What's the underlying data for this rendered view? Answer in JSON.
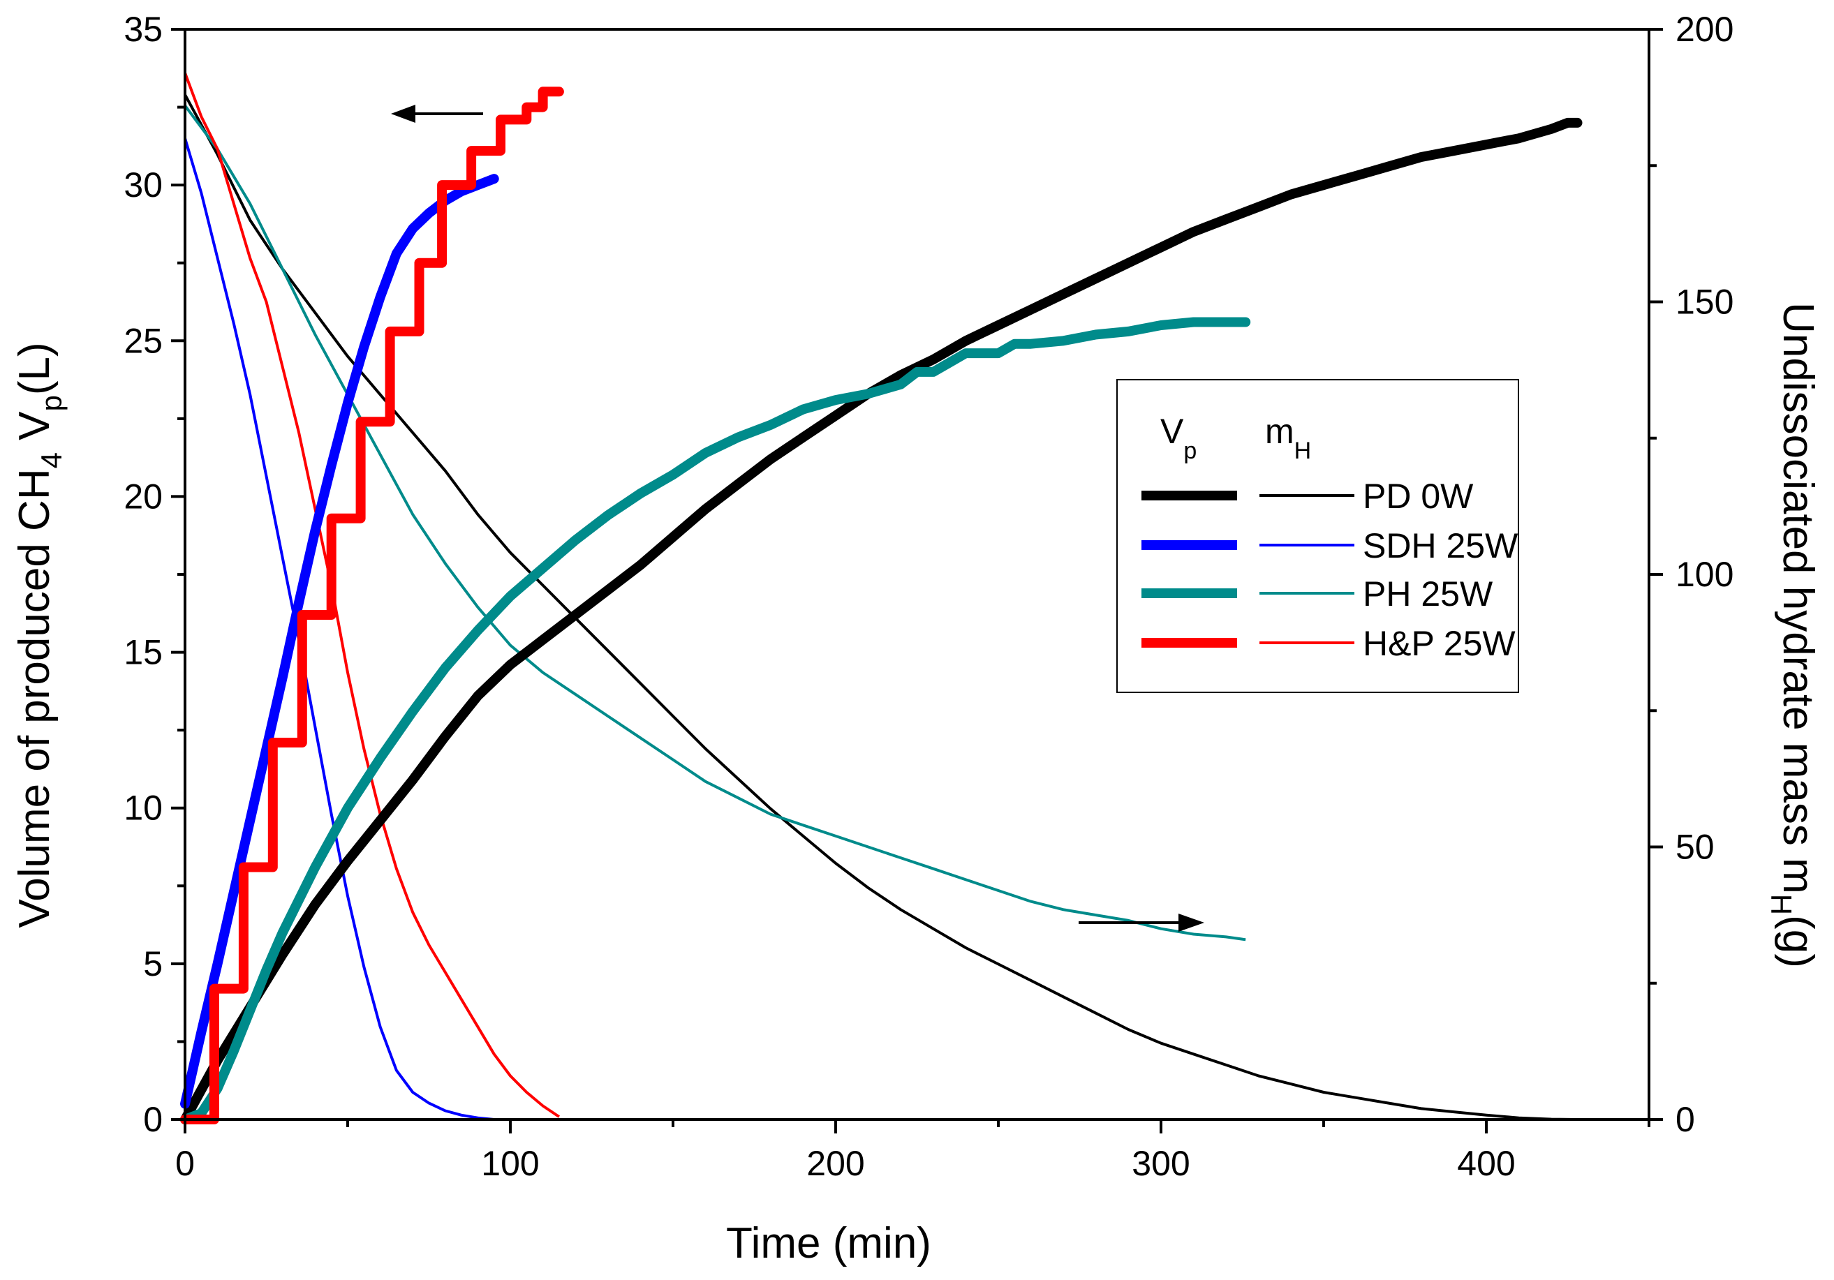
{
  "chart_data": {
    "type": "line",
    "x": {
      "label": "Time (min)",
      "range": [
        0,
        450
      ],
      "ticks": [
        0,
        100,
        200,
        300,
        400
      ]
    },
    "y_left": {
      "label_main": "Volume of produced CH",
      "label_sub1": "4",
      "label_mid": " V",
      "label_sub2": "p",
      "label_tail": "(L)",
      "range": [
        0,
        35
      ],
      "ticks": [
        0,
        5,
        10,
        15,
        20,
        25,
        30,
        35
      ]
    },
    "y_right": {
      "label_main": "Undissociated hydrate mass m",
      "label_sub": "H",
      "label_tail": "(g)",
      "range": [
        0,
        200
      ],
      "ticks": [
        0,
        50,
        100,
        150,
        200
      ]
    },
    "legend": {
      "header_vp": "V",
      "header_vp_sub": "p",
      "header_mh": "m",
      "header_mh_sub": "H",
      "position": "center-right"
    },
    "series": [
      {
        "name": "PD 0W",
        "color": "#000000",
        "volume": [
          [
            0,
            0
          ],
          [
            10,
            1.9
          ],
          [
            20,
            3.6
          ],
          [
            30,
            5.3
          ],
          [
            40,
            6.9
          ],
          [
            50,
            8.3
          ],
          [
            60,
            9.6
          ],
          [
            70,
            10.9
          ],
          [
            80,
            12.3
          ],
          [
            90,
            13.6
          ],
          [
            100,
            14.6
          ],
          [
            110,
            15.4
          ],
          [
            120,
            16.2
          ],
          [
            130,
            17.0
          ],
          [
            140,
            17.8
          ],
          [
            150,
            18.7
          ],
          [
            160,
            19.6
          ],
          [
            170,
            20.4
          ],
          [
            180,
            21.2
          ],
          [
            190,
            21.9
          ],
          [
            200,
            22.6
          ],
          [
            210,
            23.3
          ],
          [
            220,
            23.9
          ],
          [
            230,
            24.4
          ],
          [
            240,
            25.0
          ],
          [
            250,
            25.5
          ],
          [
            260,
            26.0
          ],
          [
            270,
            26.5
          ],
          [
            280,
            27.0
          ],
          [
            290,
            27.5
          ],
          [
            300,
            28.0
          ],
          [
            310,
            28.5
          ],
          [
            320,
            28.9
          ],
          [
            330,
            29.3
          ],
          [
            340,
            29.7
          ],
          [
            350,
            30.0
          ],
          [
            360,
            30.3
          ],
          [
            370,
            30.6
          ],
          [
            380,
            30.9
          ],
          [
            390,
            31.1
          ],
          [
            400,
            31.3
          ],
          [
            410,
            31.5
          ],
          [
            420,
            31.8
          ],
          [
            425,
            32.0
          ],
          [
            428,
            32.0
          ]
        ],
        "mass": [
          [
            0,
            188
          ],
          [
            10,
            177
          ],
          [
            20,
            165
          ],
          [
            30,
            156
          ],
          [
            40,
            148
          ],
          [
            50,
            140
          ],
          [
            60,
            133
          ],
          [
            70,
            126
          ],
          [
            80,
            119
          ],
          [
            90,
            111
          ],
          [
            100,
            104
          ],
          [
            110,
            98
          ],
          [
            120,
            92
          ],
          [
            130,
            86
          ],
          [
            140,
            80
          ],
          [
            150,
            74
          ],
          [
            160,
            68
          ],
          [
            170,
            62.5
          ],
          [
            180,
            57
          ],
          [
            190,
            52
          ],
          [
            200,
            47
          ],
          [
            210,
            42.5
          ],
          [
            220,
            38.5
          ],
          [
            230,
            35
          ],
          [
            240,
            31.5
          ],
          [
            250,
            28.5
          ],
          [
            260,
            25.5
          ],
          [
            270,
            22.5
          ],
          [
            280,
            19.5
          ],
          [
            290,
            16.5
          ],
          [
            300,
            14
          ],
          [
            310,
            12
          ],
          [
            320,
            10
          ],
          [
            330,
            8
          ],
          [
            340,
            6.5
          ],
          [
            350,
            5
          ],
          [
            360,
            4
          ],
          [
            370,
            3
          ],
          [
            380,
            2
          ],
          [
            390,
            1.4
          ],
          [
            400,
            0.8
          ],
          [
            410,
            0.3
          ],
          [
            420,
            0.05
          ],
          [
            428,
            0
          ]
        ]
      },
      {
        "name": "SDH 25W",
        "color": "#0000ff",
        "volume": [
          [
            0,
            0.5
          ],
          [
            5,
            2.8
          ],
          [
            10,
            5.0
          ],
          [
            15,
            7.3
          ],
          [
            20,
            9.6
          ],
          [
            25,
            11.9
          ],
          [
            30,
            14.2
          ],
          [
            35,
            16.6
          ],
          [
            40,
            18.9
          ],
          [
            45,
            21.0
          ],
          [
            50,
            23.0
          ],
          [
            55,
            24.8
          ],
          [
            60,
            26.4
          ],
          [
            65,
            27.8
          ],
          [
            70,
            28.6
          ],
          [
            75,
            29.1
          ],
          [
            80,
            29.5
          ],
          [
            85,
            29.8
          ],
          [
            90,
            30.0
          ],
          [
            95,
            30.2
          ]
        ],
        "mass": [
          [
            0,
            180
          ],
          [
            5,
            170
          ],
          [
            10,
            158
          ],
          [
            15,
            146
          ],
          [
            20,
            133
          ],
          [
            25,
            118
          ],
          [
            30,
            103
          ],
          [
            35,
            88
          ],
          [
            40,
            72
          ],
          [
            45,
            56
          ],
          [
            50,
            41
          ],
          [
            55,
            28
          ],
          [
            60,
            17
          ],
          [
            65,
            9
          ],
          [
            70,
            5
          ],
          [
            75,
            3
          ],
          [
            80,
            1.6
          ],
          [
            85,
            0.8
          ],
          [
            90,
            0.3
          ],
          [
            95,
            0
          ]
        ]
      },
      {
        "name": "PH 25W",
        "color": "#008b8b",
        "volume": [
          [
            0,
            0
          ],
          [
            5,
            0.2
          ],
          [
            10,
            1.0
          ],
          [
            15,
            2.2
          ],
          [
            20,
            3.5
          ],
          [
            25,
            4.8
          ],
          [
            30,
            6.0
          ],
          [
            40,
            8.1
          ],
          [
            50,
            10.0
          ],
          [
            60,
            11.6
          ],
          [
            70,
            13.1
          ],
          [
            80,
            14.5
          ],
          [
            90,
            15.7
          ],
          [
            100,
            16.8
          ],
          [
            110,
            17.7
          ],
          [
            120,
            18.6
          ],
          [
            130,
            19.4
          ],
          [
            140,
            20.1
          ],
          [
            150,
            20.7
          ],
          [
            160,
            21.4
          ],
          [
            170,
            21.9
          ],
          [
            180,
            22.3
          ],
          [
            190,
            22.8
          ],
          [
            200,
            23.1
          ],
          [
            210,
            23.3
          ],
          [
            220,
            23.6
          ],
          [
            225,
            24.0
          ],
          [
            230,
            24.0
          ],
          [
            235,
            24.3
          ],
          [
            240,
            24.6
          ],
          [
            250,
            24.6
          ],
          [
            255,
            24.9
          ],
          [
            260,
            24.9
          ],
          [
            270,
            25.0
          ],
          [
            280,
            25.2
          ],
          [
            290,
            25.3
          ],
          [
            300,
            25.5
          ],
          [
            310,
            25.6
          ],
          [
            320,
            25.6
          ],
          [
            326,
            25.6
          ]
        ],
        "mass": [
          [
            0,
            186
          ],
          [
            10,
            178
          ],
          [
            20,
            168
          ],
          [
            30,
            156
          ],
          [
            40,
            144
          ],
          [
            50,
            133
          ],
          [
            60,
            122
          ],
          [
            70,
            111
          ],
          [
            80,
            102
          ],
          [
            90,
            94
          ],
          [
            100,
            87
          ],
          [
            110,
            82
          ],
          [
            120,
            78
          ],
          [
            130,
            74
          ],
          [
            140,
            70
          ],
          [
            150,
            66
          ],
          [
            160,
            62
          ],
          [
            170,
            59
          ],
          [
            180,
            56
          ],
          [
            190,
            54
          ],
          [
            200,
            52
          ],
          [
            210,
            50
          ],
          [
            220,
            48
          ],
          [
            230,
            46
          ],
          [
            240,
            44
          ],
          [
            250,
            42
          ],
          [
            260,
            40
          ],
          [
            270,
            38.5
          ],
          [
            280,
            37.5
          ],
          [
            290,
            36.5
          ],
          [
            300,
            35
          ],
          [
            310,
            34
          ],
          [
            320,
            33.5
          ],
          [
            326,
            33
          ]
        ]
      },
      {
        "name": "H&P 25W",
        "color": "#ff0000",
        "volume": [
          [
            0,
            0
          ],
          [
            9,
            0
          ],
          [
            9,
            4.2
          ],
          [
            18,
            4.2
          ],
          [
            18,
            8.1
          ],
          [
            27,
            8.1
          ],
          [
            27,
            12.1
          ],
          [
            36,
            12.1
          ],
          [
            36,
            16.2
          ],
          [
            45,
            16.2
          ],
          [
            45,
            19.3
          ],
          [
            54,
            19.3
          ],
          [
            54,
            22.4
          ],
          [
            63,
            22.4
          ],
          [
            63,
            25.3
          ],
          [
            72,
            25.3
          ],
          [
            72,
            27.5
          ],
          [
            79,
            27.5
          ],
          [
            79,
            30.0
          ],
          [
            88,
            30.0
          ],
          [
            88,
            31.1
          ],
          [
            97,
            31.1
          ],
          [
            97,
            32.1
          ],
          [
            105,
            32.1
          ],
          [
            105,
            32.5
          ],
          [
            110,
            32.5
          ],
          [
            110,
            33.0
          ],
          [
            115,
            33.0
          ]
        ],
        "mass": [
          [
            0,
            192
          ],
          [
            5,
            184
          ],
          [
            10,
            178
          ],
          [
            15,
            168
          ],
          [
            20,
            158
          ],
          [
            25,
            150
          ],
          [
            30,
            138
          ],
          [
            35,
            126
          ],
          [
            40,
            112
          ],
          [
            45,
            98
          ],
          [
            50,
            82
          ],
          [
            55,
            68
          ],
          [
            60,
            56
          ],
          [
            65,
            46
          ],
          [
            70,
            38
          ],
          [
            75,
            32
          ],
          [
            80,
            27
          ],
          [
            85,
            22
          ],
          [
            90,
            17
          ],
          [
            95,
            12
          ],
          [
            100,
            8
          ],
          [
            105,
            5
          ],
          [
            110,
            2.5
          ],
          [
            115,
            0.5
          ]
        ]
      }
    ]
  }
}
